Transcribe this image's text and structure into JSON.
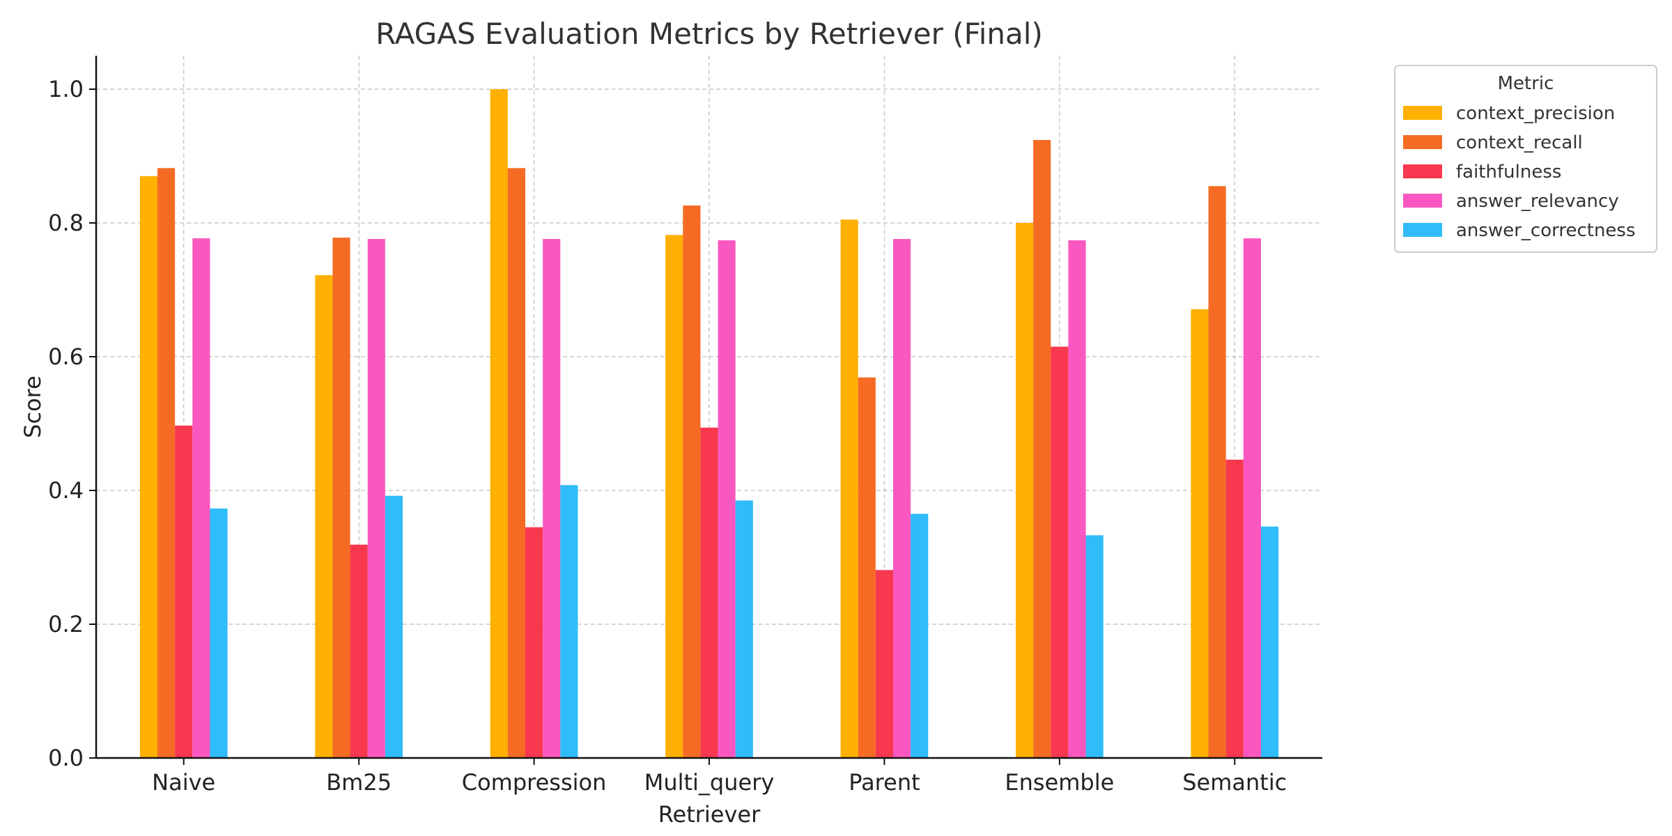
{
  "chart_data": {
    "type": "bar",
    "title": "RAGAS Evaluation Metrics by Retriever (Final)",
    "xlabel": "Retriever",
    "ylabel": "Score",
    "ylim": [
      0,
      1.05
    ],
    "yticks": [
      0.0,
      0.2,
      0.4,
      0.6,
      0.8,
      1.0
    ],
    "ytick_labels": [
      "0.0",
      "0.2",
      "0.4",
      "0.6",
      "0.8",
      "1.0"
    ],
    "grid": true,
    "legend_title": "Metric",
    "legend_position": "outside-top-right",
    "categories": [
      "Naive",
      "Bm25",
      "Compression",
      "Multi_query",
      "Parent",
      "Ensemble",
      "Semantic"
    ],
    "series": [
      {
        "name": "context_precision",
        "color": "#FFB000",
        "values": [
          0.87,
          0.722,
          1.0,
          0.782,
          0.805,
          0.8,
          0.671
        ]
      },
      {
        "name": "context_recall",
        "color": "#F56B23",
        "values": [
          0.882,
          0.778,
          0.882,
          0.826,
          0.569,
          0.924,
          0.855
        ]
      },
      {
        "name": "faithfulness",
        "color": "#F8384F",
        "values": [
          0.497,
          0.319,
          0.345,
          0.494,
          0.281,
          0.615,
          0.446
        ]
      },
      {
        "name": "answer_relevancy",
        "color": "#FA58C0",
        "values": [
          0.777,
          0.776,
          0.776,
          0.774,
          0.776,
          0.774,
          0.777
        ]
      },
      {
        "name": "answer_correctness",
        "color": "#2FBCF8",
        "values": [
          0.373,
          0.392,
          0.408,
          0.385,
          0.365,
          0.333,
          0.346
        ]
      }
    ]
  }
}
